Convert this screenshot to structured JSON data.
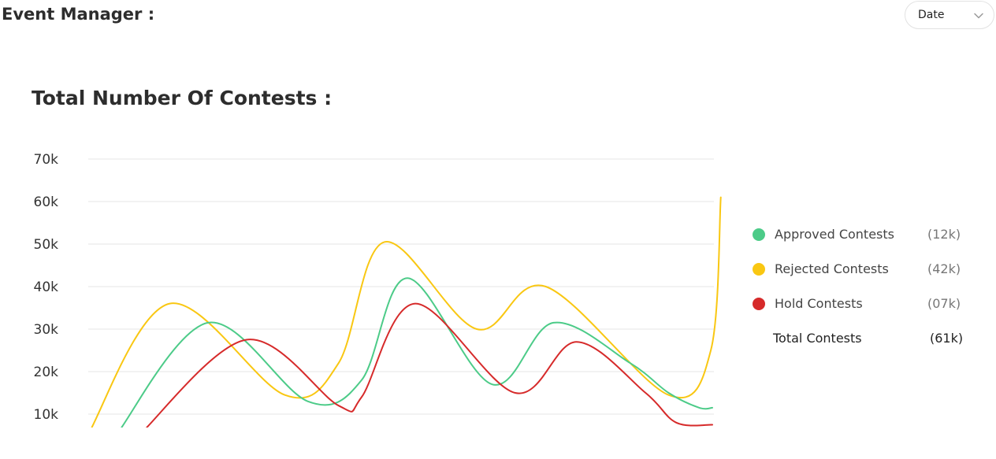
{
  "header": {
    "title": "Event Manager :",
    "date_select": {
      "label": "Date",
      "icon": "chevron-down-icon"
    }
  },
  "chart_title": "Total Number Of Contests :",
  "legend": {
    "items": [
      {
        "name": "Approved Contests",
        "value": "(12k)",
        "color": "#4ccb88"
      },
      {
        "name": "Rejected Contests",
        "value": "(42k)",
        "color": "#f9c712"
      },
      {
        "name": "Hold Contests",
        "value": "(07k)",
        "color": "#d62a2a"
      }
    ],
    "total": {
      "name": "Total Contests",
      "value": "(61k)"
    }
  },
  "chart_data": {
    "type": "line",
    "smooth": true,
    "title": "Total Number Of Contests :",
    "xlabel": "",
    "ylabel": "",
    "y_ticks": [
      "70k",
      "60k",
      "50k",
      "40k",
      "30k",
      "20k",
      "10k"
    ],
    "ylim": [
      10000,
      70000
    ],
    "grid": true,
    "legend_position": "right",
    "series": [
      {
        "name": "Rejected Contests",
        "color": "#f9c712",
        "points": [
          [
            -0.07,
            5000
          ],
          [
            1.0,
            36000
          ],
          [
            2.5,
            14500
          ],
          [
            3.2,
            22000
          ],
          [
            3.8,
            50500
          ],
          [
            5.0,
            30000
          ],
          [
            5.9,
            40000
          ],
          [
            7.5,
            14500
          ],
          [
            8.05,
            25000
          ],
          [
            8.18,
            61000
          ]
        ]
      },
      {
        "name": "Approved Contests",
        "color": "#4ccb88",
        "points": [
          [
            0.3,
            5000
          ],
          [
            1.5,
            31500
          ],
          [
            2.8,
            13000
          ],
          [
            3.5,
            18000
          ],
          [
            4.1,
            42000
          ],
          [
            5.2,
            17000
          ],
          [
            6.0,
            31500
          ],
          [
            7.0,
            22000
          ],
          [
            7.5,
            15000
          ],
          [
            7.9,
            11500
          ],
          [
            8.07,
            11500
          ]
        ]
      },
      {
        "name": "Hold Contests",
        "color": "#d62a2a",
        "points": [
          [
            0.6,
            5000
          ],
          [
            2.0,
            27500
          ],
          [
            3.2,
            12000
          ],
          [
            3.5,
            14000
          ],
          [
            4.2,
            36000
          ],
          [
            5.5,
            15000
          ],
          [
            6.3,
            27000
          ],
          [
            7.2,
            15000
          ],
          [
            7.6,
            8000
          ],
          [
            8.07,
            7500
          ]
        ]
      }
    ]
  }
}
